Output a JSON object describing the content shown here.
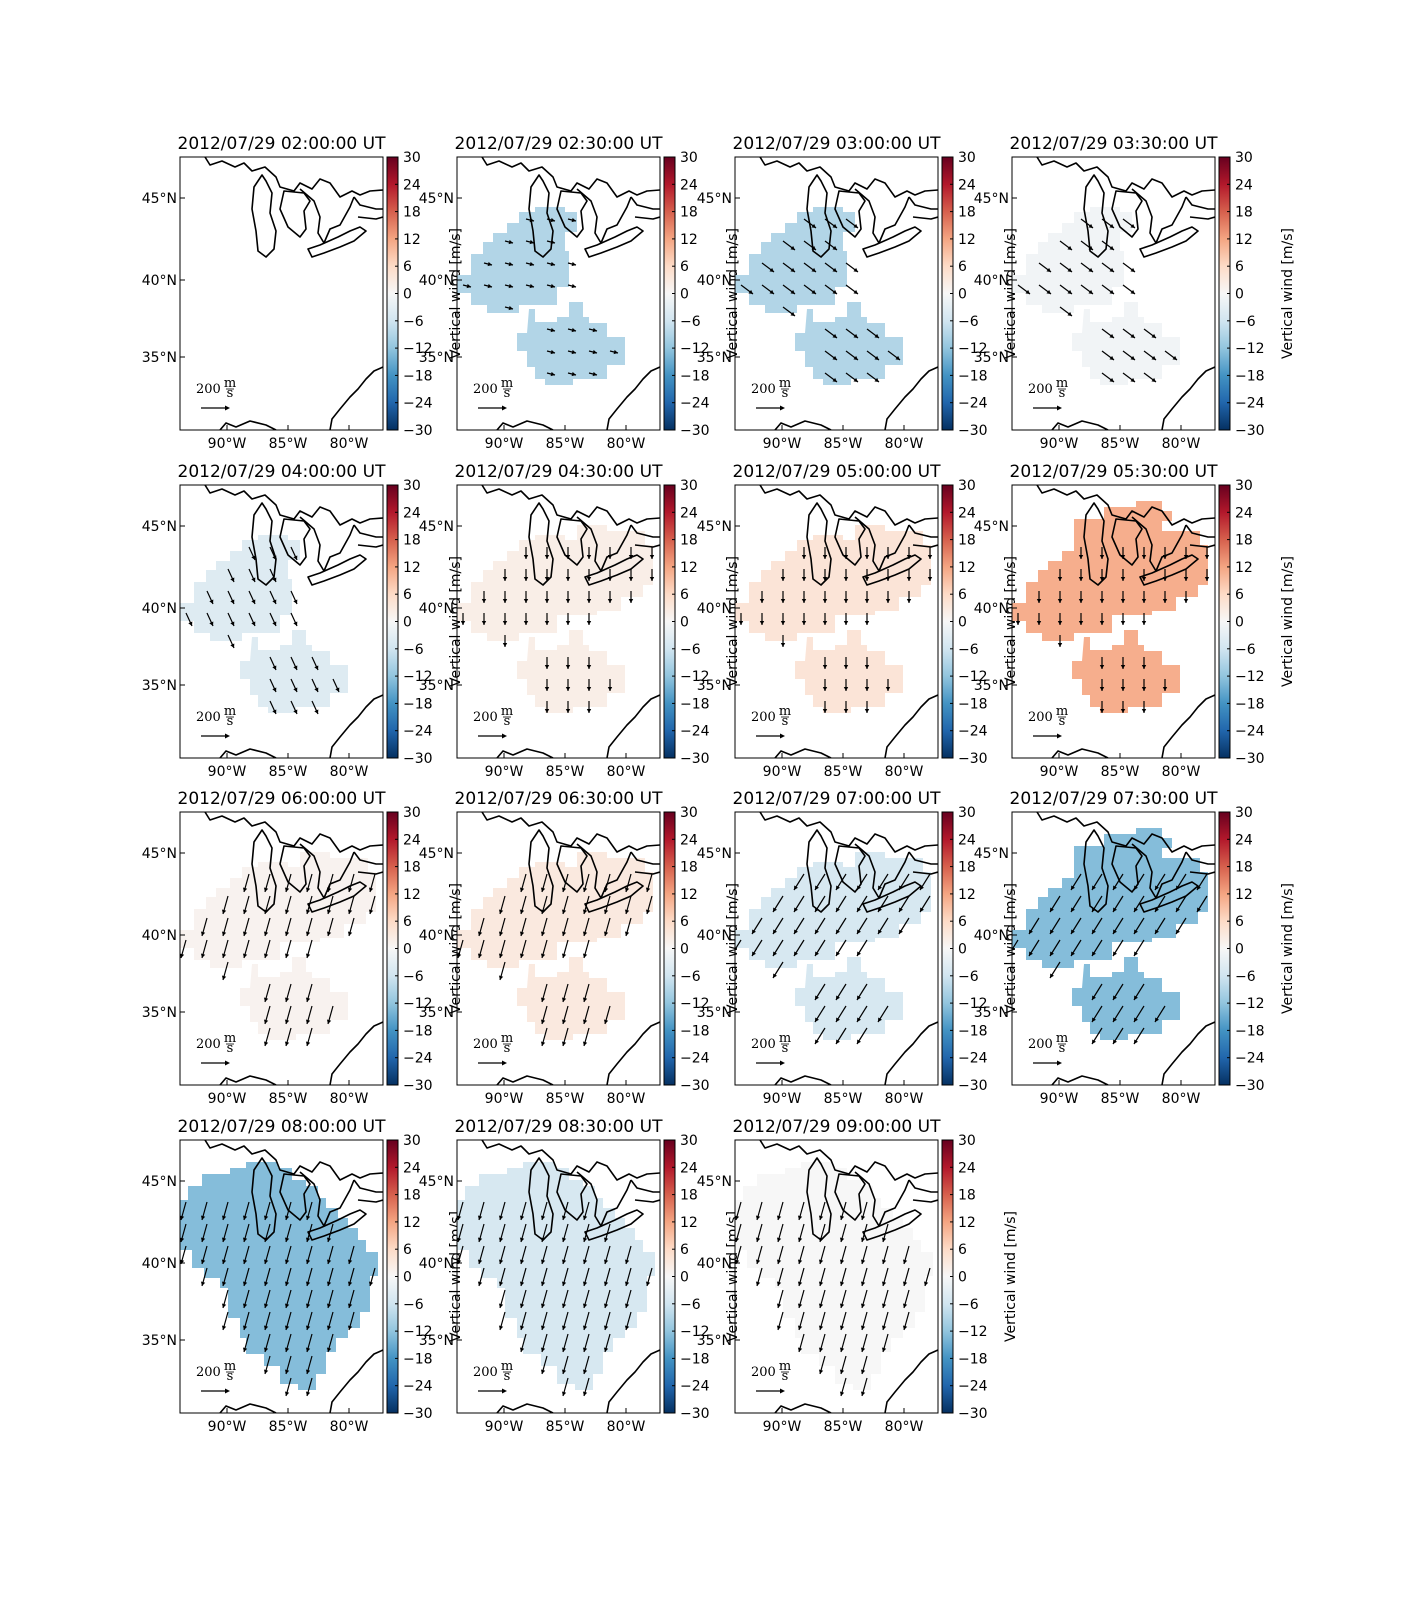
{
  "figure": {
    "colorbar": {
      "label": "Vertical wind [m/s]",
      "ticks": [
        "30",
        "24",
        "18",
        "12",
        "6",
        "0",
        "−6",
        "−12",
        "−18",
        "−24",
        "−30"
      ],
      "vmin": -30,
      "vmax": 30
    },
    "axis": {
      "lon_ticks": [
        "90°W",
        "85°W",
        "80°W"
      ],
      "lat_ticks": [
        "45°N",
        "40°N",
        "35°N"
      ]
    },
    "scale_arrow": {
      "value": "200",
      "unit_num": "m",
      "unit_den": "s"
    },
    "colormap": [
      "#053061",
      "#2166ac",
      "#4393c3",
      "#92c5de",
      "#d1e5f0",
      "#f7f7f7",
      "#fddbc7",
      "#f4a582",
      "#d6604d",
      "#b2182b",
      "#67001f"
    ],
    "panels": [
      {
        "title": "2012/07/29 02:00:00 UT",
        "value": null,
        "regions": ""
      },
      {
        "title": "2012/07/29 02:30:00 UT",
        "value": -9,
        "regions": "abc",
        "arrow": "southeast-weak"
      },
      {
        "title": "2012/07/29 03:00:00 UT",
        "value": -9,
        "regions": "abc",
        "arrow": "southeast"
      },
      {
        "title": "2012/07/29 03:30:00 UT",
        "value": -1,
        "regions": "abc",
        "arrow": "southeast"
      },
      {
        "title": "2012/07/29 04:00:00 UT",
        "value": -4,
        "regions": "abc",
        "arrow": "south-southeast"
      },
      {
        "title": "2012/07/29 04:30:00 UT",
        "value": 2,
        "regions": "abcd",
        "arrow": "south"
      },
      {
        "title": "2012/07/29 05:00:00 UT",
        "value": 4,
        "regions": "abcd",
        "arrow": "south"
      },
      {
        "title": "2012/07/29 05:30:00 UT",
        "value": 11,
        "regions": "abcde",
        "arrow": "south"
      },
      {
        "title": "2012/07/29 06:00:00 UT",
        "value": 1,
        "regions": "abcd",
        "arrow": "south-southwest"
      },
      {
        "title": "2012/07/29 06:30:00 UT",
        "value": 3,
        "regions": "abcd",
        "arrow": "south-southwest"
      },
      {
        "title": "2012/07/29 07:00:00 UT",
        "value": -5,
        "regions": "abcd",
        "arrow": "southwest"
      },
      {
        "title": "2012/07/29 07:30:00 UT",
        "value": -13,
        "regions": "abcde",
        "arrow": "southwest"
      },
      {
        "title": "2012/07/29 08:00:00 UT",
        "value": -13,
        "regions": "fg",
        "arrow": "south-southwest"
      },
      {
        "title": "2012/07/29 08:30:00 UT",
        "value": -5,
        "regions": "fg",
        "arrow": "south-southwest"
      },
      {
        "title": "2012/07/29 09:00:00 UT",
        "value": 0,
        "regions": "fg",
        "arrow": "south-southwest"
      }
    ]
  }
}
